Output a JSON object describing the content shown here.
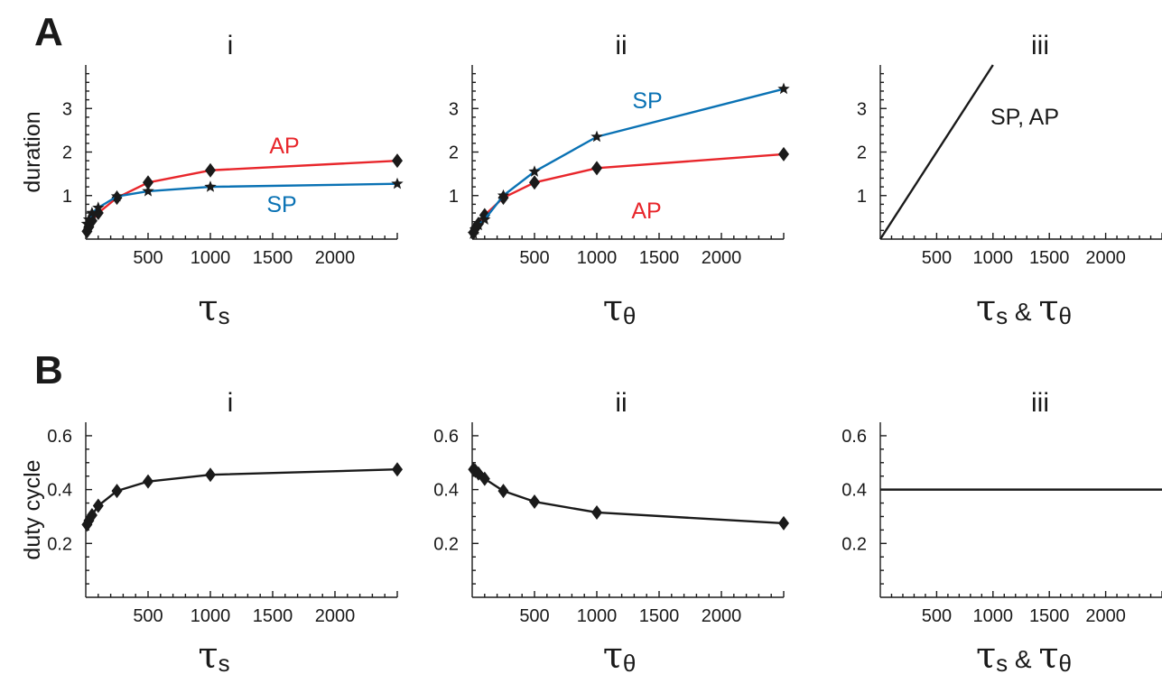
{
  "figure": {
    "row_letters": [
      "A",
      "B"
    ]
  },
  "chart_data": [
    {
      "type": "line",
      "panel": "A",
      "subtitle": "i",
      "xlabel": {
        "main": "τ",
        "sub": "s",
        "amp": "",
        "main2": "",
        "sub2": ""
      },
      "ylabel": "duration",
      "xlim": [
        0,
        2500
      ],
      "ylim": [
        0,
        4
      ],
      "xticks": [
        500,
        1000,
        1500,
        2000
      ],
      "yticks": [
        1,
        2,
        3
      ],
      "series": [
        {
          "name": "AP",
          "color": "#e8262b",
          "marker": "diamond",
          "x": [
            10,
            25,
            50,
            100,
            250,
            500,
            1000,
            2500
          ],
          "y": [
            0.18,
            0.28,
            0.42,
            0.6,
            0.95,
            1.3,
            1.58,
            1.8
          ]
        },
        {
          "name": "SP",
          "color": "#0a72b4",
          "marker": "star",
          "x": [
            10,
            25,
            50,
            100,
            250,
            500,
            1000,
            2500
          ],
          "y": [
            0.35,
            0.45,
            0.6,
            0.72,
            0.98,
            1.1,
            1.2,
            1.27
          ]
        }
      ]
    },
    {
      "type": "line",
      "panel": "A",
      "subtitle": "ii",
      "xlabel": {
        "main": "τ",
        "sub": "θ",
        "amp": "",
        "main2": "",
        "sub2": ""
      },
      "ylabel": "",
      "xlim": [
        0,
        2500
      ],
      "ylim": [
        0,
        4
      ],
      "xticks": [
        500,
        1000,
        1500,
        2000
      ],
      "yticks": [
        1,
        2,
        3
      ],
      "series": [
        {
          "name": "AP",
          "color": "#e8262b",
          "marker": "diamond",
          "x": [
            10,
            25,
            50,
            100,
            250,
            500,
            1000,
            2500
          ],
          "y": [
            0.15,
            0.25,
            0.35,
            0.55,
            0.95,
            1.3,
            1.63,
            1.95
          ]
        },
        {
          "name": "SP",
          "color": "#0a72b4",
          "marker": "star",
          "x": [
            10,
            25,
            50,
            100,
            250,
            500,
            1000,
            2500
          ],
          "y": [
            0.12,
            0.22,
            0.32,
            0.45,
            1.0,
            1.55,
            2.35,
            3.45
          ]
        }
      ]
    },
    {
      "type": "line",
      "panel": "A",
      "subtitle": "iii",
      "xlabel": {
        "main": "τ",
        "sub": "s",
        "amp": "&",
        "main2": "τ",
        "sub2": "θ"
      },
      "ylabel": "",
      "xlim": [
        0,
        2500
      ],
      "ylim": [
        0,
        4
      ],
      "xticks": [
        500,
        1000,
        1500,
        2000
      ],
      "yticks": [
        1,
        2,
        3
      ],
      "series": [
        {
          "name": "SP, AP",
          "color": "#1a1a1a",
          "marker": "none",
          "x": [
            0,
            1000
          ],
          "y": [
            0,
            4.0
          ]
        }
      ]
    },
    {
      "type": "line",
      "panel": "B",
      "subtitle": "i",
      "xlabel": {
        "main": "τ",
        "sub": "s",
        "amp": "",
        "main2": "",
        "sub2": ""
      },
      "ylabel": "duty cycle",
      "xlim": [
        0,
        2500
      ],
      "ylim": [
        0,
        0.65
      ],
      "xticks": [
        500,
        1000,
        1500,
        2000
      ],
      "yticks": [
        0.2,
        0.4,
        0.6
      ],
      "series": [
        {
          "color": "#1a1a1a",
          "marker": "diamond",
          "x": [
            10,
            25,
            50,
            100,
            250,
            500,
            1000,
            2500
          ],
          "y": [
            0.27,
            0.285,
            0.305,
            0.34,
            0.395,
            0.43,
            0.455,
            0.475
          ]
        }
      ]
    },
    {
      "type": "line",
      "panel": "B",
      "subtitle": "ii",
      "xlabel": {
        "main": "τ",
        "sub": "θ",
        "amp": "",
        "main2": "",
        "sub2": ""
      },
      "ylabel": "",
      "xlim": [
        0,
        2500
      ],
      "ylim": [
        0,
        0.65
      ],
      "xticks": [
        500,
        1000,
        1500,
        2000
      ],
      "yticks": [
        0.2,
        0.4,
        0.6
      ],
      "series": [
        {
          "color": "#1a1a1a",
          "marker": "diamond",
          "x": [
            10,
            25,
            50,
            100,
            250,
            500,
            1000,
            2500
          ],
          "y": [
            0.475,
            0.47,
            0.46,
            0.44,
            0.395,
            0.355,
            0.315,
            0.275
          ]
        }
      ]
    },
    {
      "type": "line",
      "panel": "B",
      "subtitle": "iii",
      "xlabel": {
        "main": "τ",
        "sub": "s",
        "amp": "&",
        "main2": "τ",
        "sub2": "θ"
      },
      "ylabel": "",
      "xlim": [
        0,
        2500
      ],
      "ylim": [
        0,
        0.65
      ],
      "xticks": [
        500,
        1000,
        1500,
        2000
      ],
      "yticks": [
        0.2,
        0.4,
        0.6
      ],
      "series": [
        {
          "color": "#1a1a1a",
          "marker": "none",
          "x": [
            0,
            2500
          ],
          "y": [
            0.4,
            0.4
          ]
        }
      ]
    }
  ]
}
